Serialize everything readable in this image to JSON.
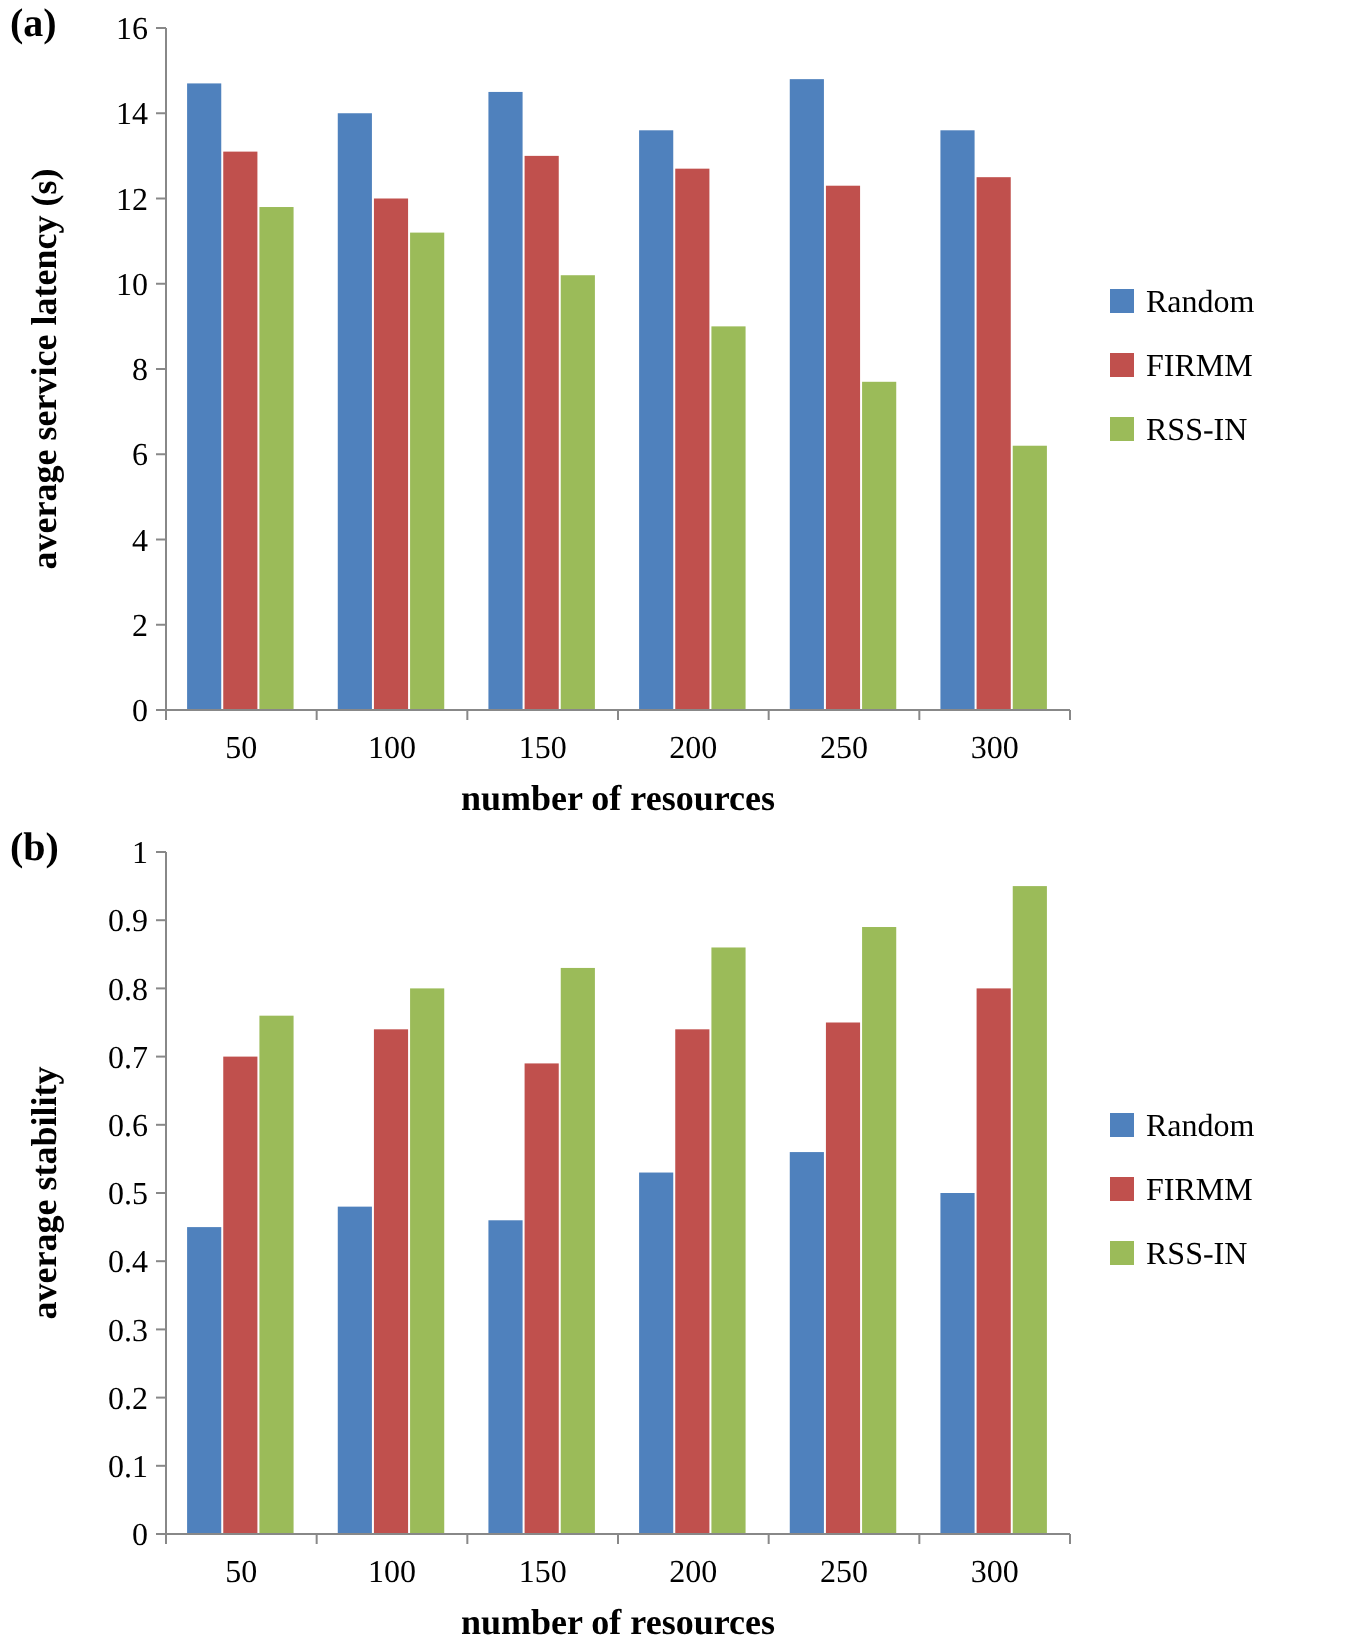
{
  "chart_data": [
    {
      "type": "bar",
      "title": "(a)",
      "xlabel": "number of resources",
      "ylabel": "average service latency (s)",
      "categories": [
        "50",
        "100",
        "150",
        "200",
        "250",
        "300"
      ],
      "ylim": [
        0,
        16
      ],
      "yticks": [
        0,
        2,
        4,
        6,
        8,
        10,
        12,
        14,
        16
      ],
      "grid": false,
      "legend": "right",
      "series": [
        {
          "name": "Random",
          "color": "#4f81bd",
          "values": [
            14.7,
            14.0,
            14.5,
            13.6,
            14.8,
            13.6
          ]
        },
        {
          "name": "FIRMM",
          "color": "#c0504d",
          "values": [
            13.1,
            12.0,
            13.0,
            12.7,
            12.3,
            12.5
          ]
        },
        {
          "name": "RSS-IN",
          "color": "#9bbb59",
          "values": [
            11.8,
            11.2,
            10.2,
            9.0,
            7.7,
            6.2
          ]
        }
      ]
    },
    {
      "type": "bar",
      "title": "(b)",
      "xlabel": "number of resources",
      "ylabel": "average stability",
      "categories": [
        "50",
        "100",
        "150",
        "200",
        "250",
        "300"
      ],
      "ylim": [
        0,
        1
      ],
      "yticks": [
        0,
        0.1,
        0.2,
        0.3,
        0.4,
        0.5,
        0.6,
        0.7,
        0.8,
        0.9,
        1
      ],
      "grid": false,
      "legend": "right",
      "series": [
        {
          "name": "Random",
          "color": "#4f81bd",
          "values": [
            0.45,
            0.48,
            0.46,
            0.53,
            0.56,
            0.5
          ]
        },
        {
          "name": "FIRMM",
          "color": "#c0504d",
          "values": [
            0.7,
            0.74,
            0.69,
            0.74,
            0.75,
            0.8
          ]
        },
        {
          "name": "RSS-IN",
          "color": "#9bbb59",
          "values": [
            0.76,
            0.8,
            0.83,
            0.86,
            0.89,
            0.95
          ]
        }
      ]
    }
  ]
}
